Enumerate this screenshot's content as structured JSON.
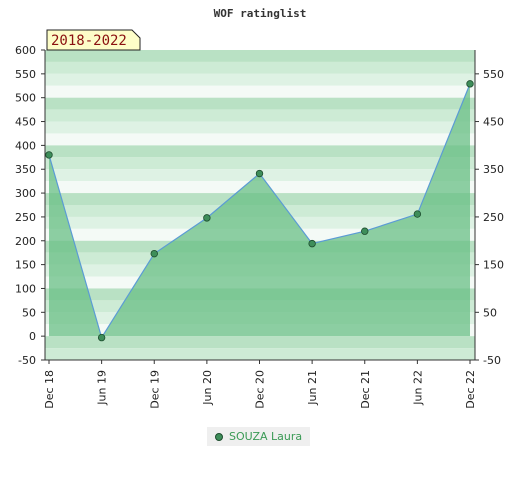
{
  "chart_data": {
    "type": "area",
    "title": "WOF ratinglist",
    "period_badge": "2018-2022",
    "categories": [
      "Dec 18",
      "Jun 19",
      "Dec 19",
      "Jun 20",
      "Dec 20",
      "Jun 21",
      "Dec 21",
      "Jun 22",
      "Dec 22"
    ],
    "series": [
      {
        "name": "SOUZA Laura",
        "values": [
          380,
          -3,
          173,
          248,
          341,
          194,
          220,
          256,
          529
        ]
      }
    ],
    "y_left": {
      "min": -50,
      "max": 600,
      "ticks": [
        -50,
        0,
        50,
        100,
        150,
        200,
        250,
        300,
        350,
        400,
        450,
        500,
        550,
        600
      ]
    },
    "y_right": {
      "ticks": [
        -50,
        50,
        150,
        250,
        350,
        450,
        550
      ]
    },
    "colors": {
      "fill": "#6abf86",
      "line": "#5b9bd5",
      "marker": "#3e8e5a",
      "band_dark": "#b9e1c4",
      "band_light": "#e6f4ea"
    }
  }
}
